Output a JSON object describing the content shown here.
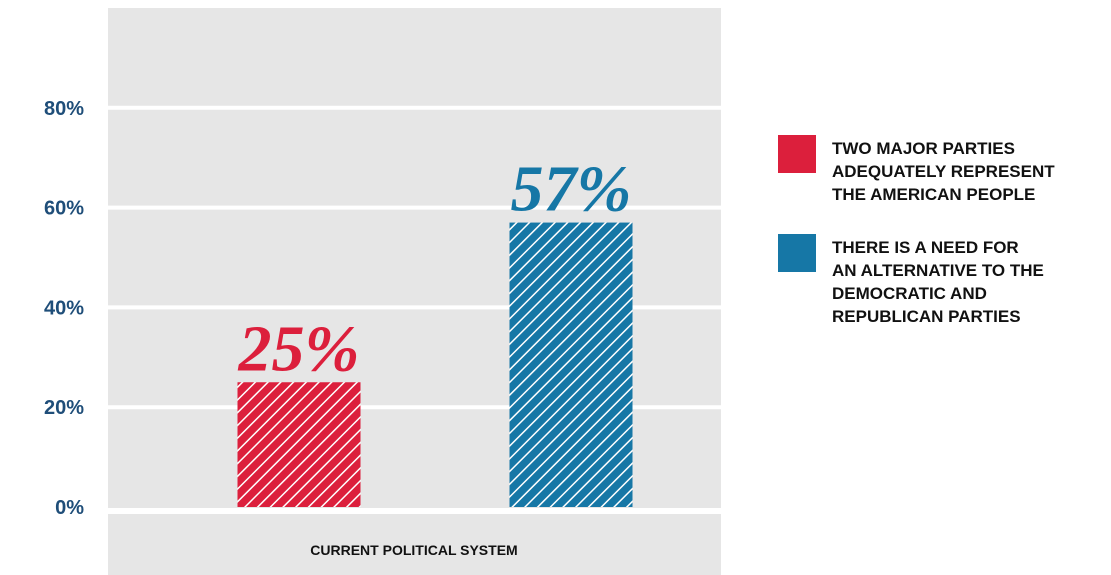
{
  "chart_data": {
    "type": "bar",
    "categories": [
      "CURRENT POLITICAL SYSTEM"
    ],
    "series": [
      {
        "name": "TWO MAJOR PARTIES\nADEQUATELY REPRESENT\nTHE AMERICAN PEOPLE",
        "values": [
          25
        ],
        "color": "#dc1f3c",
        "value_label": "25%"
      },
      {
        "name": "THERE IS A NEED FOR\nAN ALTERNATIVE TO THE\nDEMOCRATIC AND\nREPUBLICAN PARTIES",
        "values": [
          57
        ],
        "color": "#1677a6",
        "value_label": "57%"
      }
    ],
    "yticks": [
      "0%",
      "20%",
      "40%",
      "60%",
      "80%"
    ],
    "ylim": [
      0,
      100
    ],
    "grid": true,
    "bar_pattern": "diagonal-hatch",
    "legend_position": "right",
    "plot_background": "#e6e6e6"
  }
}
